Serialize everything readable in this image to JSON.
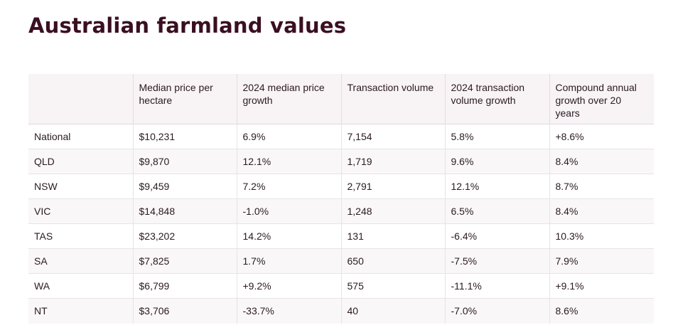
{
  "title": "Australian farmland values",
  "table": {
    "headers": [
      "",
      "Median price per hectare",
      "2024 median price growth",
      "Transaction volume",
      "2024 transaction volume growth",
      "Compound annual growth over 20 years"
    ],
    "rows": [
      [
        "National",
        "$10,231",
        "6.9%",
        "7,154",
        "5.8%",
        "+8.6%"
      ],
      [
        "QLD",
        "$9,870",
        "12.1%",
        "1,719",
        "9.6%",
        "8.4%"
      ],
      [
        "NSW",
        "$9,459",
        "7.2%",
        "2,791",
        "12.1%",
        "8.7%"
      ],
      [
        "VIC",
        "$14,848",
        "-1.0%",
        "1,248",
        "6.5%",
        "8.4%"
      ],
      [
        "TAS",
        "$23,202",
        "14.2%",
        "131",
        "-6.4%",
        "10.3%"
      ],
      [
        "SA",
        "$7,825",
        "1.7%",
        "650",
        "-7.5%",
        "7.9%"
      ],
      [
        "WA",
        "$6,799",
        "+9.2%",
        "575",
        "-11.1%",
        "+9.1%"
      ],
      [
        "NT",
        "$3,706",
        "-33.7%",
        "40",
        "-7.0%",
        "8.6%"
      ]
    ]
  }
}
